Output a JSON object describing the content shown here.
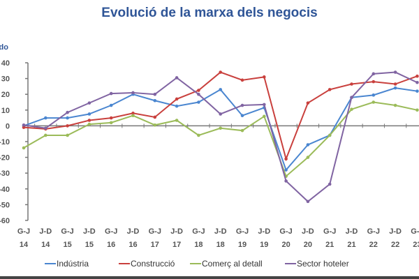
{
  "chart_data": {
    "type": "line",
    "title": "Evolució de la marxa dels negocis",
    "ylabel": "Saldo",
    "xlabel": "",
    "ylim": [
      -60,
      40
    ],
    "yticks": [
      40,
      30,
      20,
      10,
      0,
      -10,
      -20,
      -30,
      -40,
      -50,
      -60
    ],
    "grid": false,
    "legend_position": "bottom",
    "categories": [
      [
        "G-J",
        "14"
      ],
      [
        "J-D",
        "14"
      ],
      [
        "G-J",
        "15"
      ],
      [
        "J-D",
        "15"
      ],
      [
        "G-J",
        "16"
      ],
      [
        "J-D",
        "16"
      ],
      [
        "G-J",
        "17"
      ],
      [
        "J-D",
        "17"
      ],
      [
        "G-J",
        "18"
      ],
      [
        "J-D",
        "18"
      ],
      [
        "G-J",
        "19"
      ],
      [
        "J-D",
        "19"
      ],
      [
        "G-J",
        "20"
      ],
      [
        "J-D",
        "20"
      ],
      [
        "G-J",
        "21"
      ],
      [
        "J-D",
        "21"
      ],
      [
        "G-J",
        "22"
      ],
      [
        "J-D",
        "22"
      ],
      [
        "G-J",
        "23"
      ]
    ],
    "series": [
      {
        "name": "Indústria",
        "color": "#4a86d0",
        "values": [
          0,
          5,
          5,
          7.5,
          13,
          20,
          16,
          12.5,
          15,
          23,
          6.5,
          11.5,
          -28,
          -12,
          -6,
          18,
          19.5,
          24,
          22
        ]
      },
      {
        "name": "Construcció",
        "color": "#c9403d",
        "values": [
          -1,
          -2,
          0,
          3.5,
          5,
          8,
          5.5,
          17,
          22.5,
          34,
          29,
          31,
          -21,
          14.5,
          23,
          26.5,
          28,
          26.5,
          31.5
        ]
      },
      {
        "name": "Comerç al detall",
        "color": "#9bbb59",
        "values": [
          -14,
          -6,
          -6,
          1,
          2,
          6.5,
          0.5,
          3.5,
          -6,
          -1.5,
          -3,
          6,
          -32,
          -20,
          -6,
          10.5,
          15,
          13,
          10
        ]
      },
      {
        "name": "Sector hoteler",
        "color": "#8064a2",
        "values": [
          0.5,
          -1.5,
          8.5,
          14.5,
          20.5,
          21,
          20,
          30.5,
          20,
          7.5,
          13,
          13.5,
          -35,
          -48,
          -37,
          18,
          33,
          34,
          27.5
        ]
      }
    ]
  }
}
